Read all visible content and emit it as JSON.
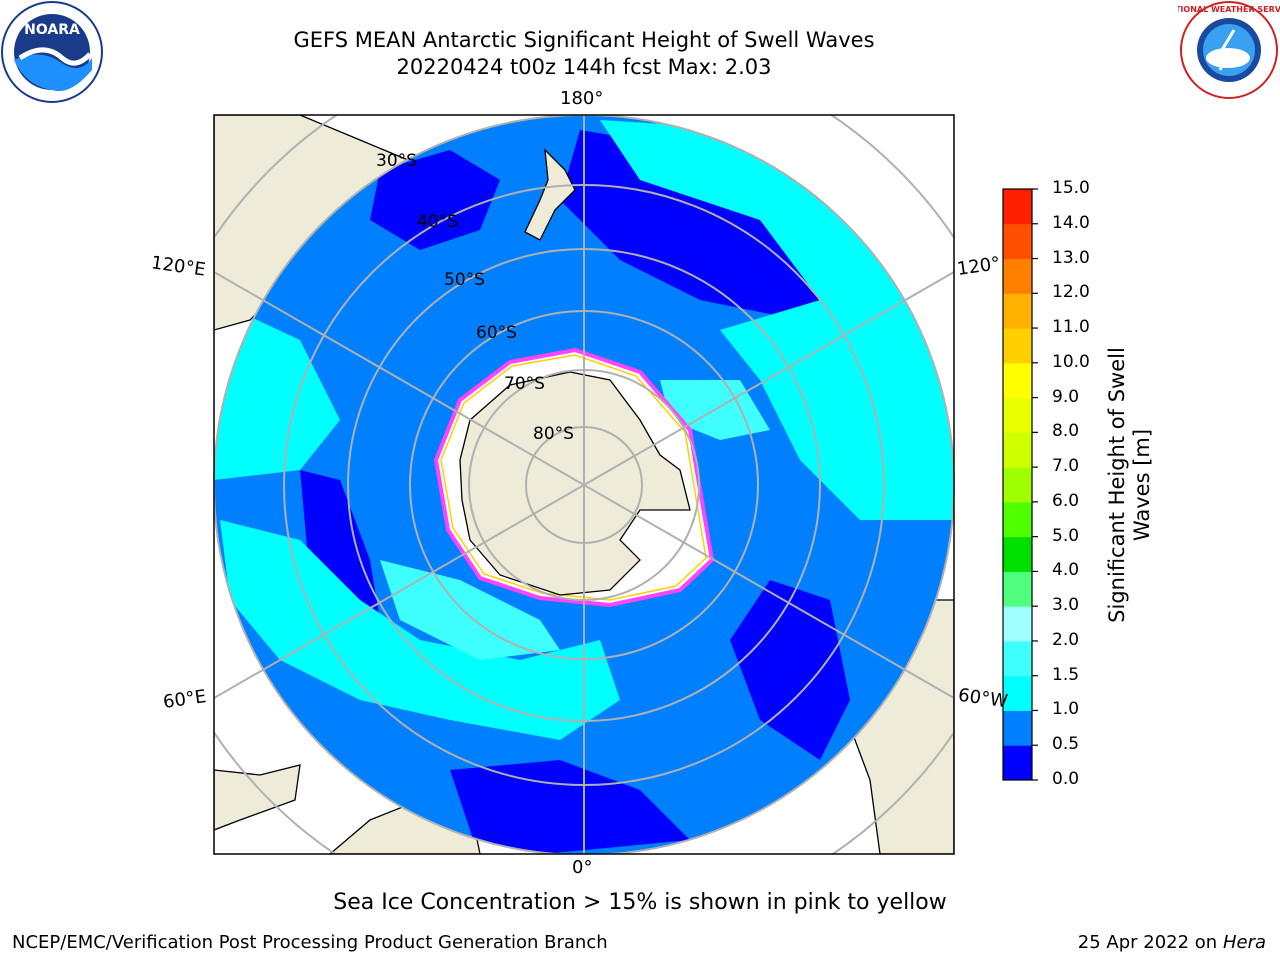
{
  "header": {
    "title_line1": "GEFS MEAN Antarctic Significant Height of Swell Waves",
    "title_line2": "20220424 t00z 144h fcst   Max: 2.03"
  },
  "map": {
    "projection": "south-polar-stereographic",
    "longitude_labels": [
      "180°",
      "120°E",
      "120°",
      "60°E",
      "60°W",
      "0°"
    ],
    "latitude_labels": [
      "30°S",
      "40°S",
      "50°S",
      "60°S",
      "70°S",
      "80°S"
    ],
    "colors": {
      "land": "#efebd9",
      "ice": "#ffffff",
      "grid": "#b0b0b0",
      "ice_edge": [
        "#ff44ff",
        "#ffd000"
      ]
    }
  },
  "colorbar": {
    "label": "Significant Height of Swell Waves [m]",
    "ticks": [
      "0.0",
      "0.5",
      "1.0",
      "1.5",
      "2.0",
      "3.0",
      "4.0",
      "5.0",
      "6.0",
      "7.0",
      "8.0",
      "9.0",
      "10.0",
      "11.0",
      "12.0",
      "13.0",
      "14.0",
      "15.0"
    ],
    "colors": [
      "#0000ff",
      "#0080ff",
      "#00ffff",
      "#40ffff",
      "#a0ffff",
      "#50ff80",
      "#00e000",
      "#50ff00",
      "#a0ff00",
      "#d0ff00",
      "#e8ff00",
      "#ffff00",
      "#ffd000",
      "#ffb000",
      "#ff8000",
      "#ff5000",
      "#ff2000",
      "#ff0000"
    ]
  },
  "footer": {
    "note": "Sea Ice Concentration > 15% is shown in pink to yellow",
    "credit": "NCEP/EMC/Verification Post Processing Product Generation Branch",
    "date": "25 Apr 2022 on",
    "host": "Hera"
  },
  "logos": {
    "left": "NOARA",
    "left_icon": "noaa-seal-icon",
    "right": "NATIONAL WEATHER SERVICE",
    "right_icon": "nws-seal-icon"
  }
}
